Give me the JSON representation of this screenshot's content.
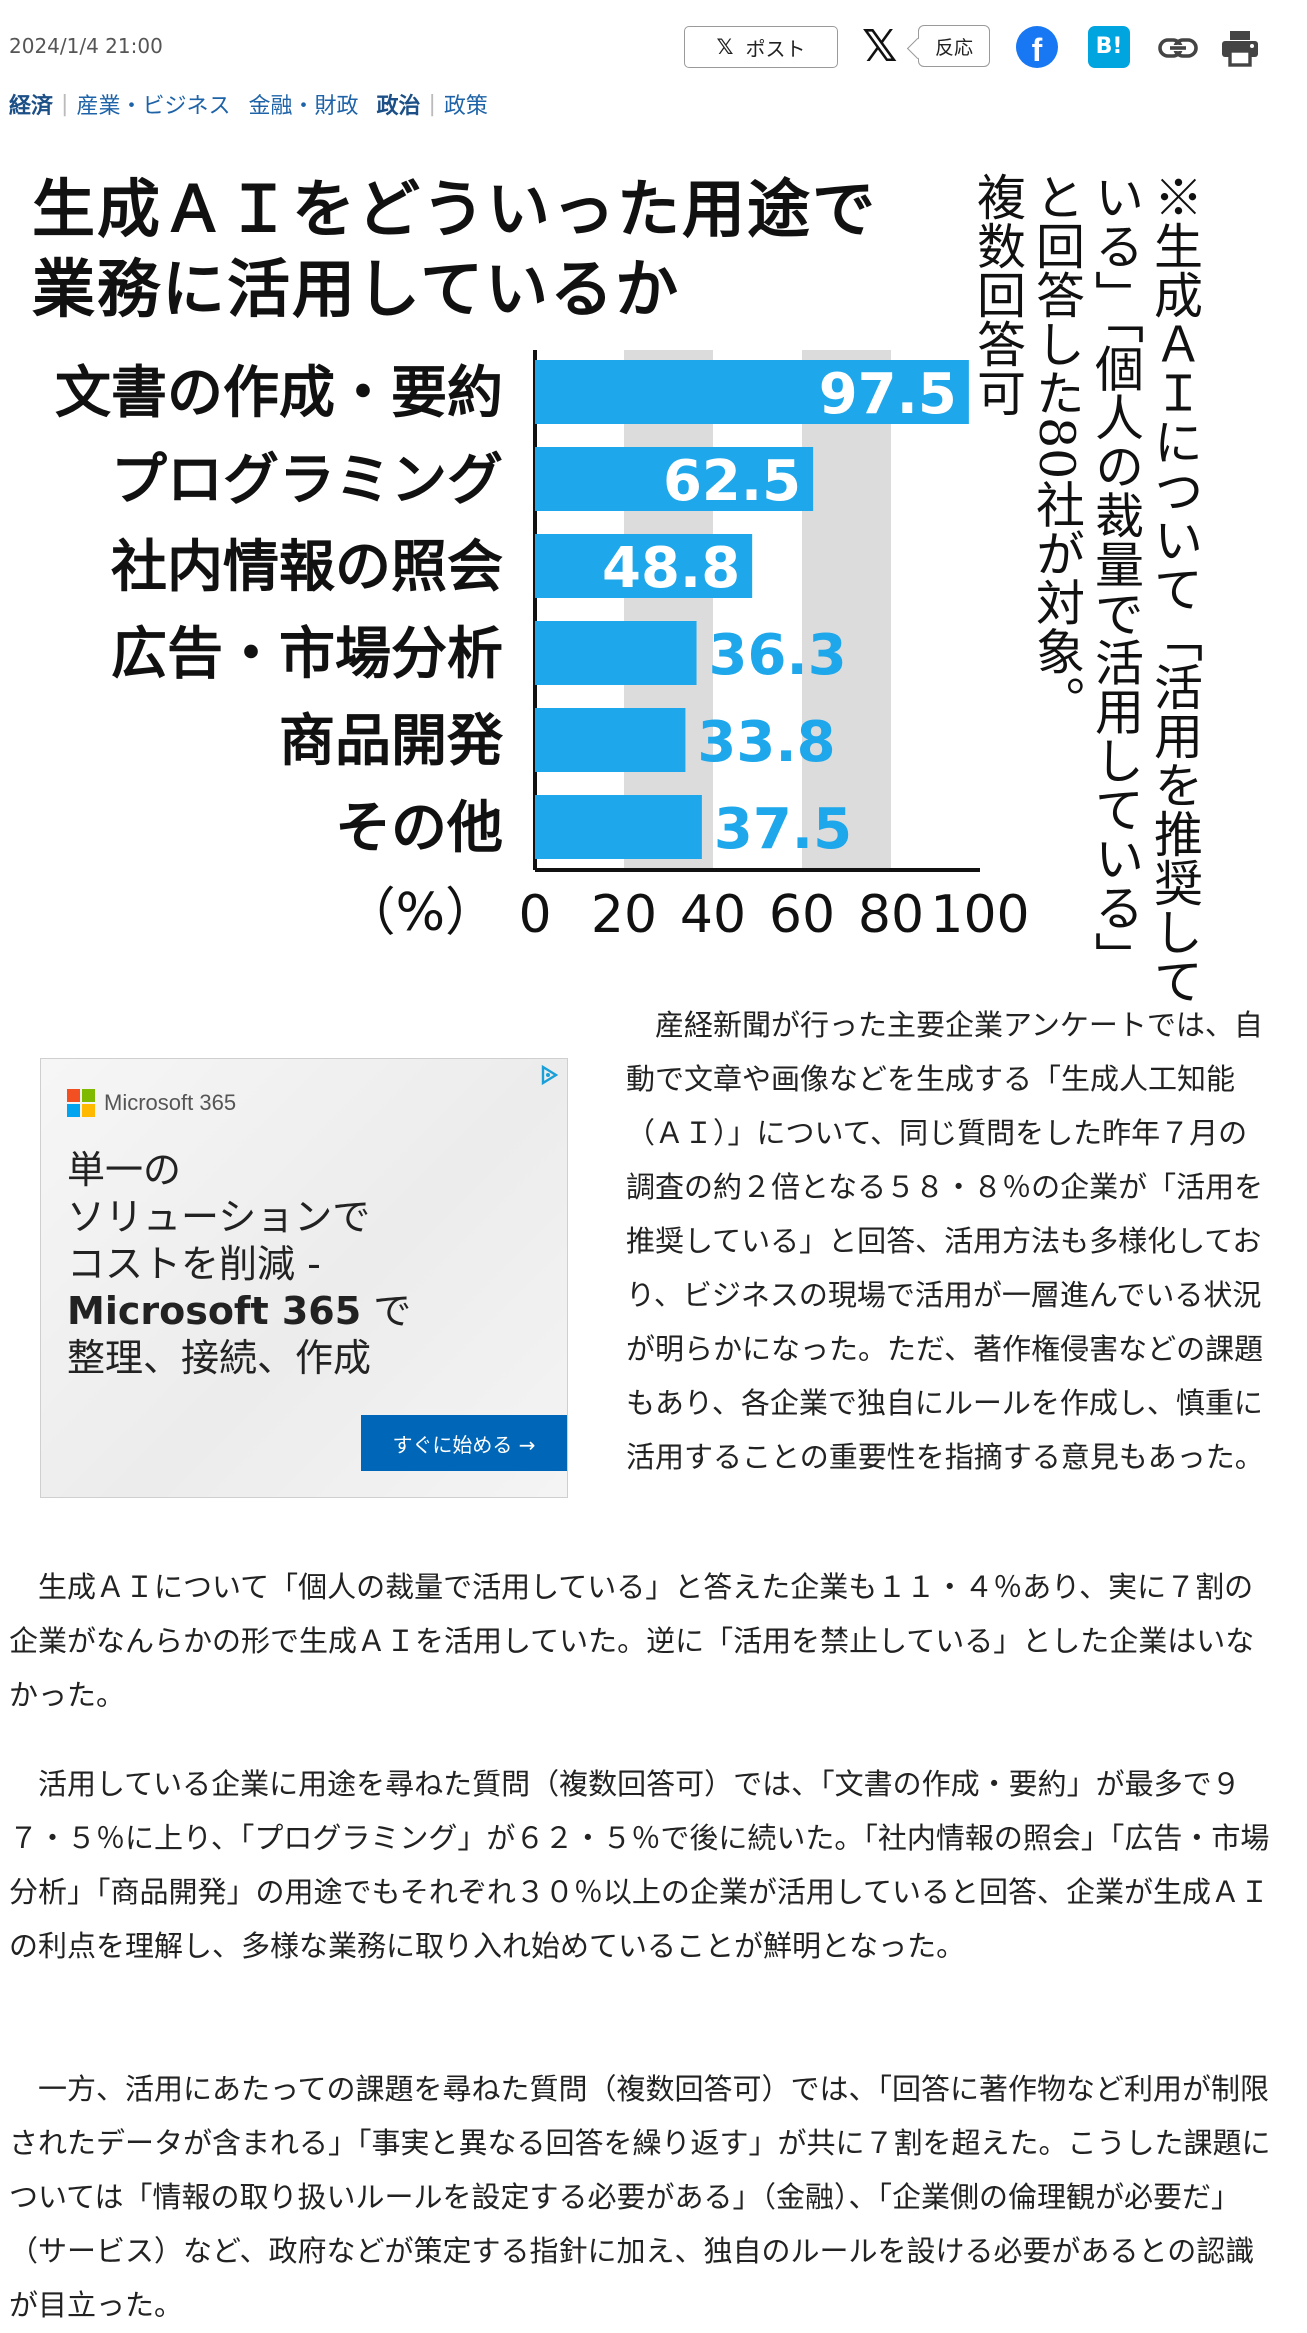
{
  "header": {
    "date": "2024/1/4 21:00",
    "post_label": "ポスト",
    "x_glyph": "𝕏",
    "reaction_label": "反応",
    "facebook_glyph": "f",
    "hatena_label": "B!"
  },
  "categories": [
    {
      "label": "経済",
      "bold": true
    },
    {
      "label": "産業・ビジネス",
      "bold": false
    },
    {
      "label": "金融・財政",
      "bold": false
    },
    {
      "label": "政治",
      "bold": true
    },
    {
      "label": "政策",
      "bold": false
    }
  ],
  "chart_data": {
    "type": "bar",
    "orientation": "horizontal",
    "title_line1": "生成ＡＩをどういった用途で",
    "title_line2": "業務に活用しているか",
    "categories": [
      "文書の作成・要約",
      "プログラミング",
      "社内情報の照会",
      "広告・市場分析",
      "商品開発",
      "その他"
    ],
    "values": [
      97.5,
      62.5,
      48.8,
      36.3,
      33.8,
      37.5
    ],
    "value_labels": [
      "97.5",
      "62.5",
      "48.8",
      "36.3",
      "33.8",
      "37.5"
    ],
    "xlim": [
      0,
      100
    ],
    "xticks": [
      "0",
      "20",
      "40",
      "60",
      "80",
      "100"
    ],
    "unit_label": "（%）",
    "bar_color": "#1ea7ea",
    "band_color": "#dcdcdc",
    "note_line1": "※生成ＡＩについて「活用を推奨して",
    "note_line2": "いる」「個人の裁量で活用している」",
    "note_line3": "と回答した80社が対象。",
    "note_line4": "複数回答可"
  },
  "ad": {
    "brand": "Microsoft 365",
    "line1": "単一の",
    "line2": "ソリューションで",
    "line3": "コストを削減 -",
    "line4_bold": "Microsoft 365",
    "line4_rest": " で",
    "line5": "整理、接続、作成",
    "cta": "すぐに始める →"
  },
  "article": {
    "p1": "　産経新聞が行った主要企業アンケートでは、自動で文章や画像などを生成する「生成人工知能（ＡＩ）」について、同じ質問をした昨年７月の調査の約２倍となる５８・８％の企業が「活用を推奨している」と回答、活用方法も多様化しており、ビジネスの現場で活用が一層進んでいる状況が明らかになった。ただ、著作権侵害などの課題もあり、各企業で独自にルールを作成し、慎重に活用することの重要性を指摘する意見もあった。",
    "p2": "　生成ＡＩについて「個人の裁量で活用している」と答えた企業も１１・４％あり、実に７割の企業がなんらかの形で生成ＡＩを活用していた。逆に「活用を禁止している」とした企業はいなかった。",
    "p3": "　活用している企業に用途を尋ねた質問（複数回答可）では、「文書の作成・要約」が最多で９７・５％に上り、「プログラミング」が６２・５％で後に続いた。「社内情報の照会」「広告・市場分析」「商品開発」の用途でもそれぞれ３０％以上の企業が活用していると回答、企業が生成ＡＩの利点を理解し、多様な業務に取り入れ始めていることが鮮明となった。",
    "p4": "　一方、活用にあたっての課題を尋ねた質問（複数回答可）では、「回答に著作物など利用が制限されたデータが含まれる」「事実と異なる回答を繰り返す」が共に７割を超えた。こうした課題については「情報の取り扱いルールを設定する必要がある」（金融）、「企業側の倫理観が必要だ」（サービス）など、政府などが策定する指針に加え、独自のルールを設ける必要があるとの認識が目立った。"
  }
}
